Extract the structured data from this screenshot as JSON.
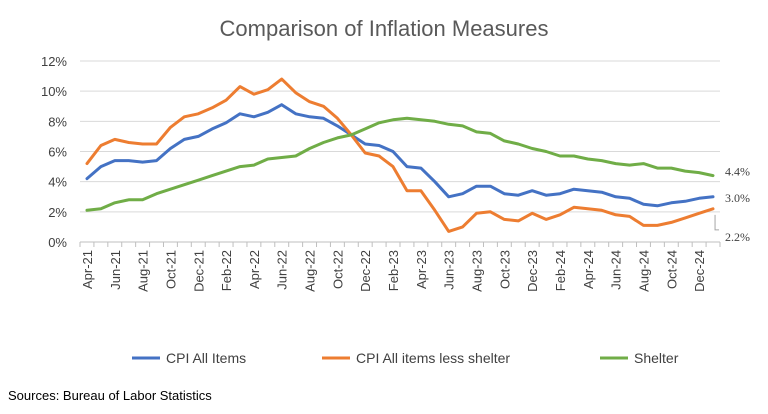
{
  "chart_data": {
    "type": "line",
    "title": "Comparison of Inflation Measures",
    "ylim": [
      0,
      12
    ],
    "yticks": [
      "0%",
      "2%",
      "4%",
      "6%",
      "8%",
      "10%",
      "12%"
    ],
    "grid": true,
    "legend_position": "bottom",
    "categories": [
      "Apr-21",
      "May-21",
      "Jun-21",
      "Jul-21",
      "Aug-21",
      "Sep-21",
      "Oct-21",
      "Nov-21",
      "Dec-21",
      "Jan-22",
      "Feb-22",
      "Mar-22",
      "Apr-22",
      "May-22",
      "Jun-22",
      "Jul-22",
      "Aug-22",
      "Sep-22",
      "Oct-22",
      "Nov-22",
      "Dec-22",
      "Jan-23",
      "Feb-23",
      "Mar-23",
      "Apr-23",
      "May-23",
      "Jun-23",
      "Jul-23",
      "Aug-23",
      "Sep-23",
      "Oct-23",
      "Nov-23",
      "Dec-23",
      "Jan-24",
      "Feb-24",
      "Mar-24",
      "Apr-24",
      "May-24",
      "Jun-24",
      "Jul-24",
      "Aug-24",
      "Sep-24",
      "Oct-24",
      "Nov-24",
      "Dec-24",
      "Jan-25"
    ],
    "x_tick_labels": [
      "Apr-21",
      "Jun-21",
      "Aug-21",
      "Oct-21",
      "Dec-21",
      "Feb-22",
      "Apr-22",
      "Jun-22",
      "Aug-22",
      "Oct-22",
      "Dec-22",
      "Feb-23",
      "Apr-23",
      "Jun-23",
      "Aug-23",
      "Oct-23",
      "Dec-23",
      "Feb-24",
      "Apr-24",
      "Jun-24",
      "Aug-24",
      "Oct-24",
      "Dec-24"
    ],
    "series": [
      {
        "name": "CPI All Items",
        "color": "#4472C4",
        "values": [
          4.2,
          5.0,
          5.4,
          5.4,
          5.3,
          5.4,
          6.2,
          6.8,
          7.0,
          7.5,
          7.9,
          8.5,
          8.3,
          8.6,
          9.1,
          8.5,
          8.3,
          8.2,
          7.7,
          7.1,
          6.5,
          6.4,
          6.0,
          5.0,
          4.9,
          4.0,
          3.0,
          3.2,
          3.7,
          3.7,
          3.2,
          3.1,
          3.4,
          3.1,
          3.2,
          3.5,
          3.4,
          3.3,
          3.0,
          2.9,
          2.5,
          2.4,
          2.6,
          2.7,
          2.9,
          3.0
        ],
        "end_label": "3.0%"
      },
      {
        "name": "CPI All items less shelter",
        "color": "#ED7D31",
        "values": [
          5.2,
          6.4,
          6.8,
          6.6,
          6.5,
          6.5,
          7.6,
          8.3,
          8.5,
          8.9,
          9.4,
          10.3,
          9.8,
          10.1,
          10.8,
          9.9,
          9.3,
          9.0,
          8.2,
          7.1,
          5.9,
          5.7,
          5.0,
          3.4,
          3.4,
          2.1,
          0.7,
          1.0,
          1.9,
          2.0,
          1.5,
          1.4,
          1.9,
          1.5,
          1.8,
          2.3,
          2.2,
          2.1,
          1.8,
          1.7,
          1.1,
          1.1,
          1.3,
          1.6,
          1.9,
          2.2
        ],
        "end_label": "2.2%"
      },
      {
        "name": "Shelter",
        "color": "#70AD47",
        "values": [
          2.1,
          2.2,
          2.6,
          2.8,
          2.8,
          3.2,
          3.5,
          3.8,
          4.1,
          4.4,
          4.7,
          5.0,
          5.1,
          5.5,
          5.6,
          5.7,
          6.2,
          6.6,
          6.9,
          7.1,
          7.5,
          7.9,
          8.1,
          8.2,
          8.1,
          8.0,
          7.8,
          7.7,
          7.3,
          7.2,
          6.7,
          6.5,
          6.2,
          6.0,
          5.7,
          5.7,
          5.5,
          5.4,
          5.2,
          5.1,
          5.2,
          4.9,
          4.9,
          4.7,
          4.6,
          4.4
        ],
        "end_label": "4.4%"
      }
    ]
  },
  "footer": {
    "source": "Sources: Bureau of Labor Statistics"
  }
}
